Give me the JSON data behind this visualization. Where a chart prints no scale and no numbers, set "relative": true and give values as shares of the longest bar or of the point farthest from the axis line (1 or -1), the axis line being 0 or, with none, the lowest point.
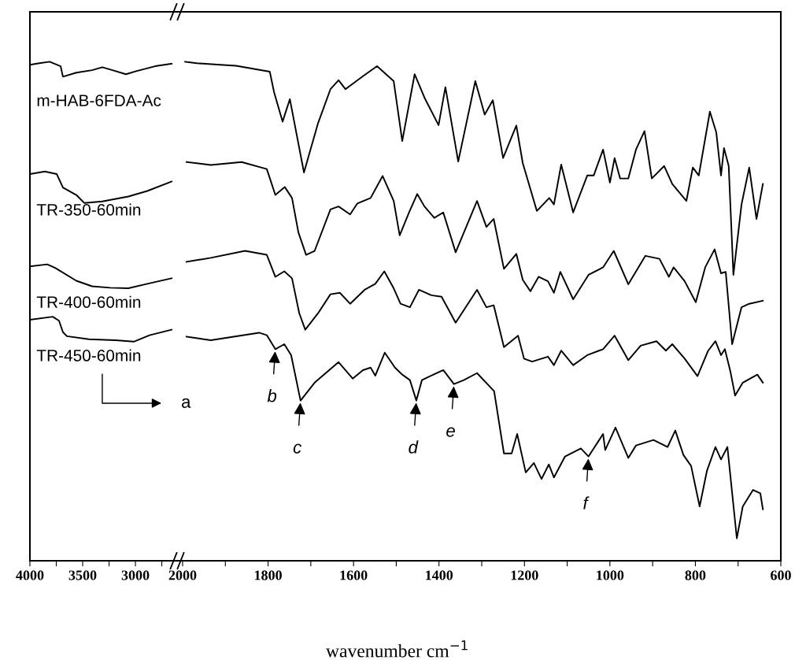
{
  "chart_data": [
    {
      "type": "line",
      "relative": true,
      "tick_labels": "x",
      "xlim": [
        4000,
        2620
      ],
      "xticks": [
        4000,
        {
          "value": 3750,
          "label": null
        },
        3500,
        {
          "value": 3250,
          "label": null
        },
        3000,
        {
          "value": 2750,
          "label": null
        }
      ],
      "series": [
        {
          "name": "m-HAB-6FDA-Ac",
          "color": "#000000",
          "x": [
            4000,
            3910,
            3813,
            3709,
            3687,
            3560,
            3411,
            3314,
            3217,
            3090,
            2993,
            2814,
            2657
          ],
          "values": [
            0.994,
            0.997,
            1.0,
            0.991,
            0.97,
            0.978,
            0.983,
            0.989,
            0.983,
            0.975,
            0.981,
            0.991,
            0.996
          ]
        },
        {
          "name": "TR-350-60min",
          "color": "#000000",
          "x": [
            4000,
            3858,
            3746,
            3687,
            3560,
            3485,
            3314,
            3067,
            2888,
            2657
          ],
          "values": [
            0.775,
            0.78,
            0.775,
            0.748,
            0.733,
            0.717,
            0.72,
            0.73,
            0.741,
            0.76
          ]
        },
        {
          "name": "TR-400-60min",
          "color": "#000000",
          "x": [
            4000,
            3836,
            3761,
            3560,
            3411,
            3239,
            3067,
            2888,
            2657
          ],
          "values": [
            0.59,
            0.594,
            0.587,
            0.561,
            0.55,
            0.547,
            0.546,
            0.555,
            0.566
          ]
        },
        {
          "name": "TR-450-60min",
          "color": "#000000",
          "x": [
            4000,
            3784,
            3724,
            3687,
            3649,
            3440,
            3187,
            3015,
            2866,
            2657
          ],
          "values": [
            0.483,
            0.489,
            0.481,
            0.458,
            0.45,
            0.444,
            0.442,
            0.439,
            0.452,
            0.463
          ]
        }
      ],
      "annotations": [
        "a"
      ]
    },
    {
      "type": "line",
      "relative": true,
      "tick_labels": "x",
      "xlim": [
        2000,
        600
      ],
      "xticks": [
        2000,
        {
          "value": 1900,
          "label": null
        },
        1800,
        {
          "value": 1700,
          "label": null
        },
        1600,
        {
          "value": 1500,
          "label": null
        },
        1400,
        {
          "value": 1300,
          "label": null
        },
        1200,
        {
          "value": 1100,
          "label": null
        },
        1000,
        {
          "value": 900,
          "label": null
        },
        800,
        {
          "value": 700,
          "label": null
        },
        600
      ],
      "xlabel": "wavenumber cm$^{−1}$",
      "series": [
        {
          "color": "#000000",
          "x": [
            1994,
            1967,
            1912,
            1875,
            1796,
            1786,
            1766,
            1749,
            1716,
            1683,
            1654,
            1635,
            1619,
            1578,
            1545,
            1506,
            1486,
            1457,
            1434,
            1401,
            1385,
            1355,
            1315,
            1293,
            1274,
            1250,
            1219,
            1204,
            1171,
            1142,
            1131,
            1114,
            1086,
            1053,
            1038,
            1016,
            1000,
            989,
            976,
            957,
            939,
            919,
            902,
            873,
            854,
            821,
            806,
            792,
            766,
            751,
            740,
            733,
            722,
            711,
            692,
            674,
            657,
            642
          ],
          "values": [
            1.0,
            0.997,
            0.994,
            0.992,
            0.98,
            0.939,
            0.88,
            0.925,
            0.778,
            0.877,
            0.945,
            0.963,
            0.945,
            0.971,
            0.991,
            0.961,
            0.841,
            0.975,
            0.928,
            0.873,
            0.949,
            0.8,
            0.961,
            0.894,
            0.923,
            0.807,
            0.872,
            0.797,
            0.701,
            0.727,
            0.714,
            0.794,
            0.698,
            0.772,
            0.772,
            0.824,
            0.758,
            0.807,
            0.766,
            0.766,
            0.824,
            0.861,
            0.766,
            0.791,
            0.755,
            0.721,
            0.788,
            0.772,
            0.9,
            0.858,
            0.772,
            0.827,
            0.791,
            0.573,
            0.714,
            0.788,
            0.685,
            0.755
          ]
        },
        {
          "color": "#000000",
          "x": [
            1991,
            1934,
            1862,
            1803,
            1783,
            1761,
            1744,
            1729,
            1711,
            1691,
            1654,
            1635,
            1608,
            1591,
            1560,
            1532,
            1506,
            1492,
            1470,
            1451,
            1434,
            1411,
            1390,
            1361,
            1311,
            1289,
            1272,
            1248,
            1219,
            1204,
            1186,
            1167,
            1145,
            1131,
            1116,
            1086,
            1050,
            1016,
            991,
            957,
            917,
            884,
            862,
            851,
            825,
            799,
            777,
            755,
            740,
            729,
            714,
            692,
            674,
            642
          ],
          "values": [
            0.799,
            0.793,
            0.799,
            0.785,
            0.733,
            0.749,
            0.727,
            0.658,
            0.613,
            0.621,
            0.704,
            0.71,
            0.694,
            0.716,
            0.727,
            0.771,
            0.721,
            0.652,
            0.698,
            0.735,
            0.71,
            0.687,
            0.698,
            0.618,
            0.721,
            0.669,
            0.685,
            0.585,
            0.615,
            0.563,
            0.54,
            0.569,
            0.56,
            0.537,
            0.579,
            0.524,
            0.573,
            0.588,
            0.621,
            0.554,
            0.611,
            0.605,
            0.569,
            0.588,
            0.56,
            0.518,
            0.588,
            0.624,
            0.576,
            0.579,
            0.434,
            0.508,
            0.515,
            0.521
          ]
        },
        {
          "color": "#000000",
          "x": [
            1991,
            1934,
            1854,
            1803,
            1783,
            1762,
            1744,
            1727,
            1713,
            1683,
            1654,
            1632,
            1608,
            1574,
            1549,
            1528,
            1506,
            1490,
            1468,
            1447,
            1418,
            1394,
            1361,
            1311,
            1289,
            1272,
            1248,
            1215,
            1201,
            1182,
            1145,
            1131,
            1114,
            1086,
            1053,
            1016,
            989,
            957,
            928,
            891,
            869,
            854,
            825,
            795,
            770,
            753,
            740,
            731,
            718,
            707,
            689,
            655,
            642
          ],
          "values": [
            0.599,
            0.607,
            0.621,
            0.613,
            0.569,
            0.58,
            0.566,
            0.496,
            0.463,
            0.496,
            0.534,
            0.537,
            0.515,
            0.543,
            0.555,
            0.58,
            0.546,
            0.515,
            0.508,
            0.543,
            0.532,
            0.529,
            0.477,
            0.543,
            0.508,
            0.512,
            0.428,
            0.451,
            0.405,
            0.399,
            0.409,
            0.392,
            0.421,
            0.392,
            0.412,
            0.424,
            0.451,
            0.402,
            0.431,
            0.44,
            0.421,
            0.434,
            0.405,
            0.37,
            0.421,
            0.44,
            0.412,
            0.424,
            0.379,
            0.331,
            0.357,
            0.373,
            0.357
          ]
        },
        {
          "color": "#000000",
          "x": [
            1991,
            1934,
            1821,
            1803,
            1783,
            1762,
            1746,
            1724,
            1691,
            1635,
            1602,
            1578,
            1560,
            1549,
            1527,
            1503,
            1486,
            1468,
            1453,
            1440,
            1418,
            1390,
            1365,
            1342,
            1311,
            1271,
            1248,
            1230,
            1217,
            1197,
            1178,
            1160,
            1143,
            1131,
            1105,
            1068,
            1050,
            1016,
            1011,
            987,
            957,
            939,
            898,
            865,
            847,
            828,
            810,
            790,
            773,
            753,
            740,
            725,
            703,
            689,
            665,
            648,
            642
          ],
          "values": [
            0.449,
            0.442,
            0.457,
            0.452,
            0.424,
            0.434,
            0.412,
            0.321,
            0.357,
            0.398,
            0.365,
            0.382,
            0.387,
            0.371,
            0.417,
            0.387,
            0.373,
            0.362,
            0.321,
            0.362,
            0.371,
            0.382,
            0.354,
            0.362,
            0.376,
            0.34,
            0.215,
            0.215,
            0.254,
            0.177,
            0.196,
            0.164,
            0.193,
            0.167,
            0.209,
            0.225,
            0.209,
            0.254,
            0.222,
            0.267,
            0.206,
            0.231,
            0.242,
            0.228,
            0.261,
            0.212,
            0.19,
            0.109,
            0.18,
            0.228,
            0.203,
            0.228,
            0.045,
            0.109,
            0.142,
            0.135,
            0.103
          ]
        }
      ],
      "annotations": [
        {
          "text": "b",
          "x": 1783,
          "y": 0.424
        },
        {
          "text": "c",
          "x": 1724,
          "y": 0.321
        },
        {
          "text": "d",
          "x": 1453,
          "y": 0.321
        },
        {
          "text": "e",
          "x": 1365,
          "y": 0.354
        },
        {
          "text": "f",
          "x": 1050,
          "y": 0.209
        }
      ]
    }
  ]
}
